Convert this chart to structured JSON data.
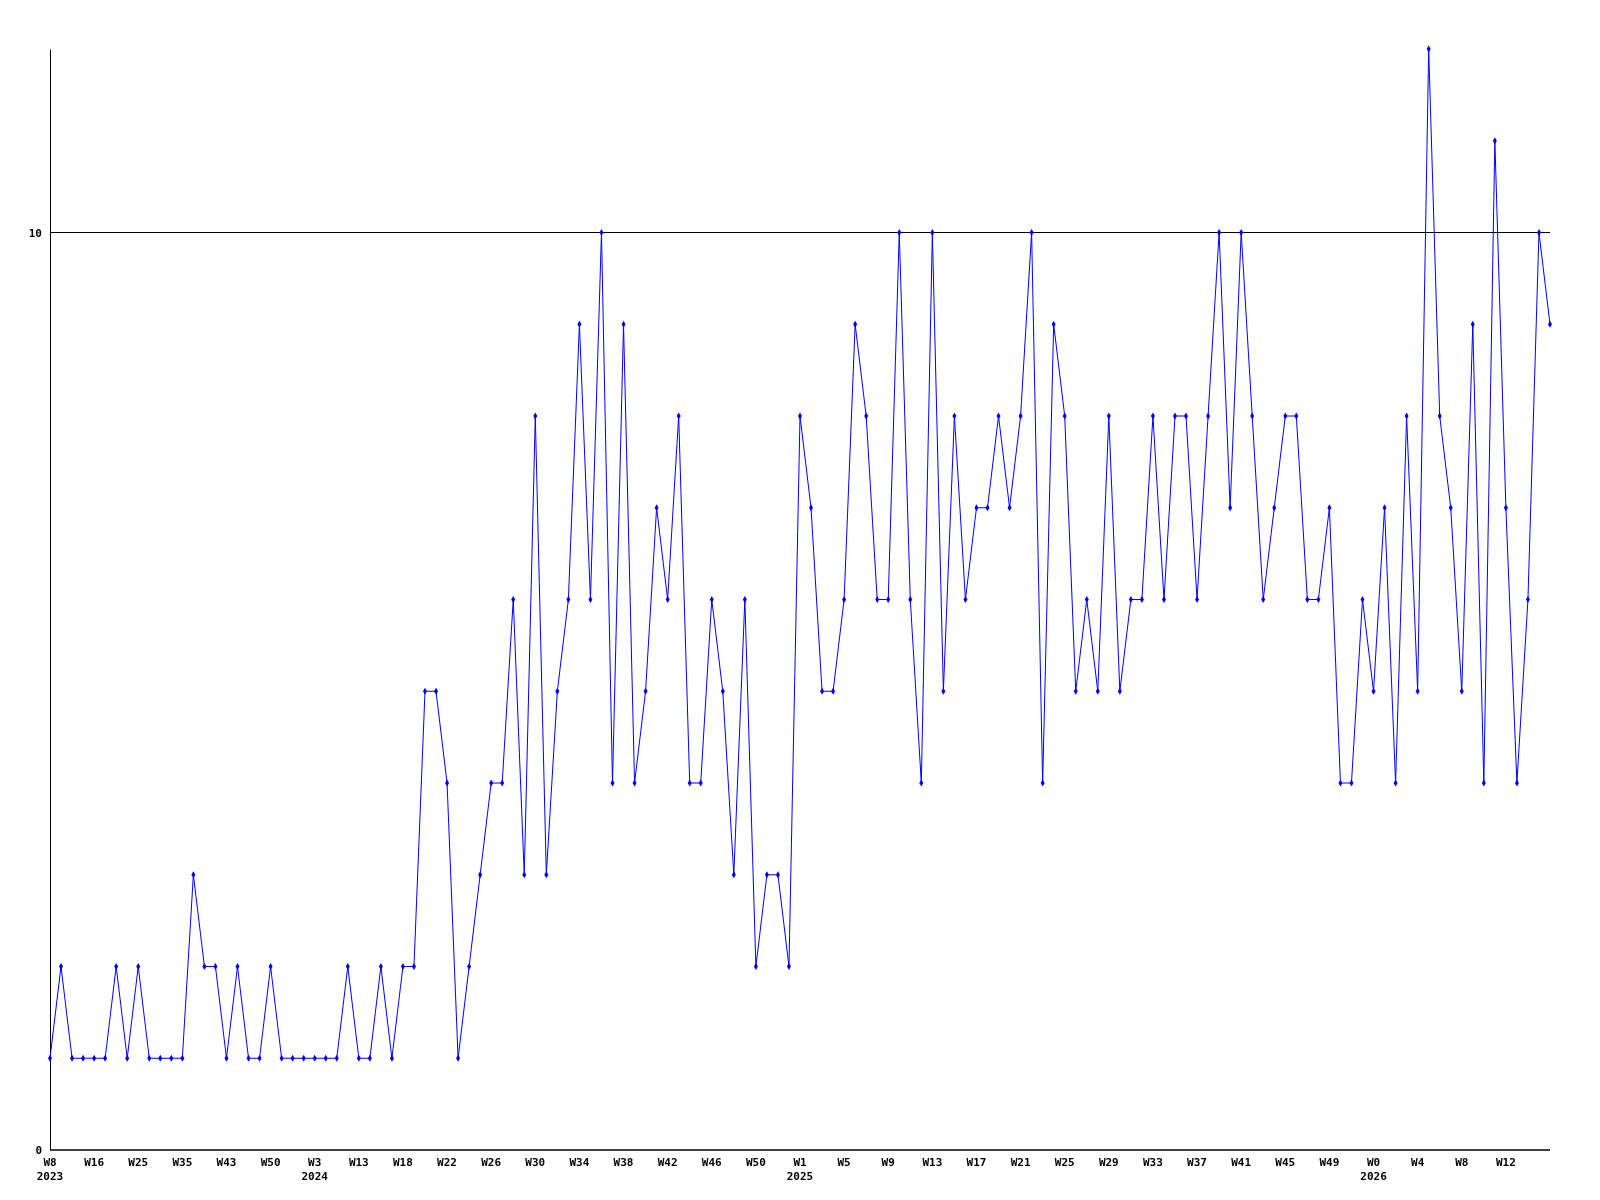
{
  "chart_data": {
    "type": "line",
    "categories": [
      "W8\n2023",
      null,
      null,
      null,
      "W16",
      null,
      null,
      null,
      "W25",
      null,
      null,
      null,
      "W35",
      null,
      null,
      null,
      "W43",
      null,
      null,
      null,
      "W50",
      null,
      null,
      null,
      "W3\n2024",
      null,
      null,
      null,
      "W13",
      null,
      null,
      null,
      "W18",
      null,
      null,
      null,
      "W22",
      null,
      null,
      null,
      "W26",
      null,
      null,
      null,
      "W30",
      null,
      null,
      null,
      "W34",
      null,
      null,
      null,
      "W38",
      null,
      null,
      null,
      "W42",
      null,
      null,
      null,
      "W46",
      null,
      null,
      null,
      "W50",
      null,
      null,
      null,
      "W1\n2025",
      null,
      null,
      null,
      "W5",
      null,
      null,
      null,
      "W9",
      null,
      null,
      null,
      "W13",
      null,
      null,
      null,
      "W17",
      null,
      null,
      null,
      "W21",
      null,
      null,
      null,
      "W25",
      null,
      null,
      null,
      "W29",
      null,
      null,
      null,
      "W33",
      null,
      null,
      null,
      "W37",
      null,
      null,
      null,
      "W41",
      null,
      null,
      null,
      "W45",
      null,
      null,
      null,
      "W49",
      null,
      null,
      null,
      "W0\n2026",
      null,
      null,
      null,
      "W4",
      null,
      null,
      null,
      "W8",
      null,
      null,
      null,
      "W12",
      null,
      null,
      null,
      null
    ],
    "series": [
      {
        "color": "#0000ff",
        "values": [
          1,
          2,
          1,
          1,
          1,
          1,
          2,
          1,
          2,
          1,
          1,
          1,
          1,
          3,
          2,
          2,
          1,
          2,
          1,
          1,
          2,
          1,
          1,
          1,
          1,
          1,
          1,
          2,
          1,
          1,
          2,
          1,
          2,
          2,
          5,
          5,
          4,
          1,
          2,
          3,
          4,
          4,
          6,
          3,
          8,
          3,
          5,
          6,
          9,
          6,
          10,
          4,
          9,
          4,
          5,
          7,
          6,
          8,
          4,
          4,
          6,
          5,
          3,
          6,
          2,
          3,
          3,
          2,
          8,
          7,
          5,
          5,
          6,
          9,
          8,
          6,
          6,
          10,
          6,
          4,
          10,
          5,
          8,
          6,
          7,
          7,
          8,
          7,
          8,
          10,
          4,
          9,
          8,
          5,
          6,
          5,
          8,
          5,
          6,
          6,
          8,
          6,
          8,
          8,
          6,
          8,
          10,
          7,
          10,
          8,
          6,
          7,
          8,
          8,
          6,
          6,
          7,
          4,
          4,
          6,
          5,
          7,
          4,
          8,
          5,
          12,
          8,
          7,
          5,
          9,
          4,
          11,
          7,
          4,
          6,
          10,
          9
        ]
      }
    ],
    "ylim": [
      0,
      12
    ],
    "yticks": [
      0,
      10
    ],
    "grid": "y",
    "marker": "diamond"
  }
}
